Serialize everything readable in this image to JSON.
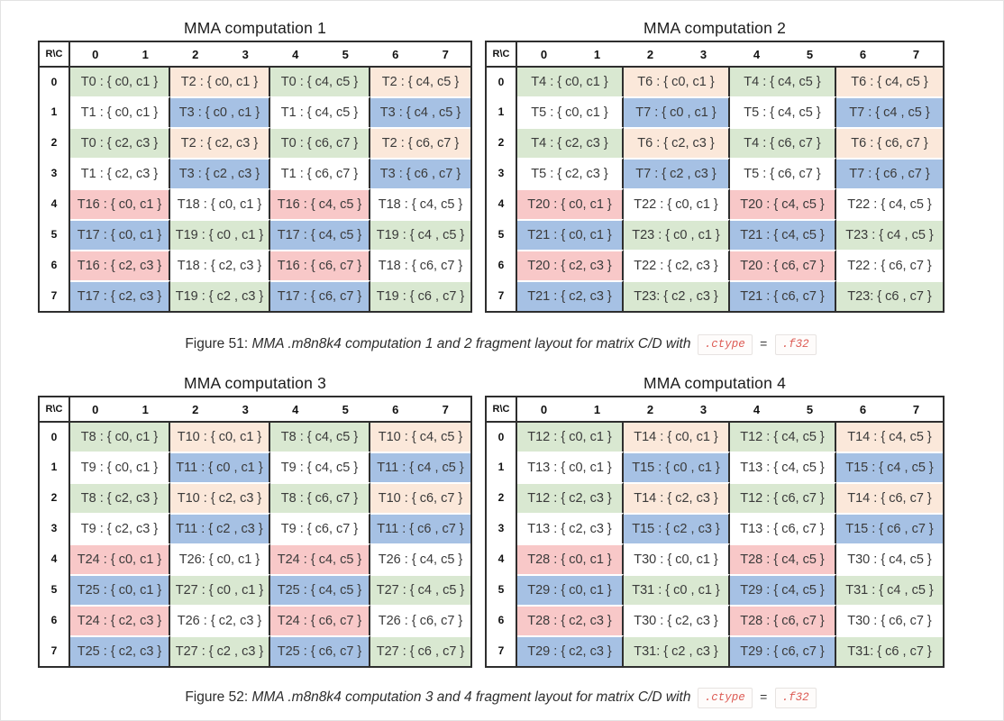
{
  "colors": {
    "green": "#d9e8d1",
    "peach": "#fbe8da",
    "blue": "#a6c1e4",
    "pink": "#f8c8c8",
    "border_dark": "#2e2e2e",
    "cell_text": "#3a3a3a",
    "chip_text": "#dd5c55",
    "chip_bg": "#fefcfb",
    "chip_border": "#e7e3e1"
  },
  "tables": [
    {
      "title": "MMA computation 1",
      "corner": "R\\C",
      "col_headers": [
        "0",
        "1",
        "2",
        "3",
        "4",
        "5",
        "6",
        "7"
      ],
      "row_headers": [
        "0",
        "1",
        "2",
        "3",
        "4",
        "5",
        "6",
        "7"
      ],
      "rows": [
        [
          {
            "t": "T0 : { c0, c1 }",
            "c": "green"
          },
          {
            "t": "T2 : { c0, c1 }",
            "c": "peach"
          },
          {
            "t": "T0 : { c4, c5 }",
            "c": "green"
          },
          {
            "t": "T2 : { c4, c5 }",
            "c": "peach"
          }
        ],
        [
          {
            "t": "T1 : { c0, c1 }",
            "c": "white"
          },
          {
            "t": "T3 : { c0 , c1 }",
            "c": "blue"
          },
          {
            "t": "T1 : { c4, c5 }",
            "c": "white"
          },
          {
            "t": "T3 : { c4 , c5 }",
            "c": "blue"
          }
        ],
        [
          {
            "t": "T0 : { c2, c3 }",
            "c": "green"
          },
          {
            "t": "T2 : { c2, c3 }",
            "c": "peach"
          },
          {
            "t": "T0 : { c6, c7 }",
            "c": "green"
          },
          {
            "t": "T2 : { c6, c7 }",
            "c": "peach"
          }
        ],
        [
          {
            "t": "T1 : { c2, c3 }",
            "c": "white"
          },
          {
            "t": "T3 : { c2 , c3 }",
            "c": "blue"
          },
          {
            "t": "T1 : { c6, c7 }",
            "c": "white"
          },
          {
            "t": "T3 : { c6 , c7 }",
            "c": "blue"
          }
        ],
        [
          {
            "t": "T16 : { c0, c1 }",
            "c": "pink"
          },
          {
            "t": "T18 : { c0, c1 }",
            "c": "white"
          },
          {
            "t": "T16 : { c4, c5 }",
            "c": "pink"
          },
          {
            "t": "T18 : { c4, c5 }",
            "c": "white"
          }
        ],
        [
          {
            "t": "T17 : { c0, c1 }",
            "c": "blue"
          },
          {
            "t": "T19 : { c0 , c1 }",
            "c": "green"
          },
          {
            "t": "T17 : { c4, c5 }",
            "c": "blue"
          },
          {
            "t": "T19 : { c4 , c5 }",
            "c": "green"
          }
        ],
        [
          {
            "t": "T16 : { c2, c3 }",
            "c": "pink"
          },
          {
            "t": "T18 : { c2, c3 }",
            "c": "white"
          },
          {
            "t": "T16 : { c6, c7 }",
            "c": "pink"
          },
          {
            "t": "T18 : { c6, c7 }",
            "c": "white"
          }
        ],
        [
          {
            "t": "T17 : { c2, c3 }",
            "c": "blue"
          },
          {
            "t": "T19 : { c2 , c3 }",
            "c": "green"
          },
          {
            "t": "T17 : { c6, c7 }",
            "c": "blue"
          },
          {
            "t": "T19 : { c6 , c7 }",
            "c": "green"
          }
        ]
      ]
    },
    {
      "title": "MMA computation 2",
      "corner": "R\\C",
      "col_headers": [
        "0",
        "1",
        "2",
        "3",
        "4",
        "5",
        "6",
        "7"
      ],
      "row_headers": [
        "0",
        "1",
        "2",
        "3",
        "4",
        "5",
        "6",
        "7"
      ],
      "rows": [
        [
          {
            "t": "T4 : { c0, c1 }",
            "c": "green"
          },
          {
            "t": "T6 : { c0, c1 }",
            "c": "peach"
          },
          {
            "t": "T4 : { c4, c5 }",
            "c": "green"
          },
          {
            "t": "T6 : { c4, c5 }",
            "c": "peach"
          }
        ],
        [
          {
            "t": "T5 : { c0, c1 }",
            "c": "white"
          },
          {
            "t": "T7 : { c0 , c1 }",
            "c": "blue"
          },
          {
            "t": "T5 : { c4, c5 }",
            "c": "white"
          },
          {
            "t": "T7 : { c4 , c5 }",
            "c": "blue"
          }
        ],
        [
          {
            "t": "T4 : { c2, c3 }",
            "c": "green"
          },
          {
            "t": "T6 : { c2, c3 }",
            "c": "peach"
          },
          {
            "t": "T4 : { c6, c7 }",
            "c": "green"
          },
          {
            "t": "T6 : { c6, c7 }",
            "c": "peach"
          }
        ],
        [
          {
            "t": "T5 : { c2, c3 }",
            "c": "white"
          },
          {
            "t": "T7 : { c2 , c3 }",
            "c": "blue"
          },
          {
            "t": "T5 : { c6, c7 }",
            "c": "white"
          },
          {
            "t": "T7 : { c6 , c7 }",
            "c": "blue"
          }
        ],
        [
          {
            "t": "T20 : { c0, c1 }",
            "c": "pink"
          },
          {
            "t": "T22 : { c0, c1 }",
            "c": "white"
          },
          {
            "t": "T20 : { c4, c5 }",
            "c": "pink"
          },
          {
            "t": "T22 : { c4, c5 }",
            "c": "white"
          }
        ],
        [
          {
            "t": "T21 : { c0, c1 }",
            "c": "blue"
          },
          {
            "t": "T23 : { c0 , c1 }",
            "c": "green"
          },
          {
            "t": "T21 : { c4, c5 }",
            "c": "blue"
          },
          {
            "t": "T23 : { c4 , c5 }",
            "c": "green"
          }
        ],
        [
          {
            "t": "T20 : { c2, c3 }",
            "c": "pink"
          },
          {
            "t": "T22 : { c2, c3 }",
            "c": "white"
          },
          {
            "t": "T20 : { c6, c7 }",
            "c": "pink"
          },
          {
            "t": "T22 : { c6, c7 }",
            "c": "white"
          }
        ],
        [
          {
            "t": "T21 : { c2, c3 }",
            "c": "blue"
          },
          {
            "t": "T23: { c2 , c3 }",
            "c": "green"
          },
          {
            "t": "T21 : { c6, c7 }",
            "c": "blue"
          },
          {
            "t": "T23: { c6 , c7 }",
            "c": "green"
          }
        ]
      ]
    },
    {
      "title": "MMA computation 3",
      "corner": "R\\C",
      "col_headers": [
        "0",
        "1",
        "2",
        "3",
        "4",
        "5",
        "6",
        "7"
      ],
      "row_headers": [
        "0",
        "1",
        "2",
        "3",
        "4",
        "5",
        "6",
        "7"
      ],
      "rows": [
        [
          {
            "t": "T8 : { c0, c1 }",
            "c": "green"
          },
          {
            "t": "T10 : { c0, c1 }",
            "c": "peach"
          },
          {
            "t": "T8 : { c4, c5 }",
            "c": "green"
          },
          {
            "t": "T10 : { c4, c5 }",
            "c": "peach"
          }
        ],
        [
          {
            "t": "T9 : { c0, c1 }",
            "c": "white"
          },
          {
            "t": "T11 : { c0 , c1 }",
            "c": "blue"
          },
          {
            "t": "T9 : { c4, c5 }",
            "c": "white"
          },
          {
            "t": "T11 : { c4 , c5 }",
            "c": "blue"
          }
        ],
        [
          {
            "t": "T8 : { c2, c3 }",
            "c": "green"
          },
          {
            "t": "T10 : { c2, c3 }",
            "c": "peach"
          },
          {
            "t": "T8 : { c6, c7 }",
            "c": "green"
          },
          {
            "t": "T10 : { c6, c7 }",
            "c": "peach"
          }
        ],
        [
          {
            "t": "T9 : { c2, c3 }",
            "c": "white"
          },
          {
            "t": "T11 : { c2 , c3 }",
            "c": "blue"
          },
          {
            "t": "T9 : { c6, c7 }",
            "c": "white"
          },
          {
            "t": "T11 : { c6 , c7 }",
            "c": "blue"
          }
        ],
        [
          {
            "t": "T24 : { c0, c1 }",
            "c": "pink"
          },
          {
            "t": "T26: { c0, c1 }",
            "c": "white"
          },
          {
            "t": "T24 : { c4, c5 }",
            "c": "pink"
          },
          {
            "t": "T26 : { c4, c5 }",
            "c": "white"
          }
        ],
        [
          {
            "t": "T25 : { c0, c1 }",
            "c": "blue"
          },
          {
            "t": "T27 : { c0 , c1 }",
            "c": "green"
          },
          {
            "t": "T25 : { c4, c5 }",
            "c": "blue"
          },
          {
            "t": "T27 : { c4 , c5 }",
            "c": "green"
          }
        ],
        [
          {
            "t": "T24 : { c2, c3 }",
            "c": "pink"
          },
          {
            "t": "T26 : { c2, c3 }",
            "c": "white"
          },
          {
            "t": "T24 : { c6, c7 }",
            "c": "pink"
          },
          {
            "t": "T26 : { c6, c7 }",
            "c": "white"
          }
        ],
        [
          {
            "t": "T25 : { c2, c3 }",
            "c": "blue"
          },
          {
            "t": "T27 : { c2 , c3 }",
            "c": "green"
          },
          {
            "t": "T25 : { c6, c7 }",
            "c": "blue"
          },
          {
            "t": "T27 : { c6 , c7 }",
            "c": "green"
          }
        ]
      ]
    },
    {
      "title": "MMA computation 4",
      "corner": "R\\C",
      "col_headers": [
        "0",
        "1",
        "2",
        "3",
        "4",
        "5",
        "6",
        "7"
      ],
      "row_headers": [
        "0",
        "1",
        "2",
        "3",
        "4",
        "5",
        "6",
        "7"
      ],
      "rows": [
        [
          {
            "t": "T12 : { c0, c1 }",
            "c": "green"
          },
          {
            "t": "T14 : { c0, c1 }",
            "c": "peach"
          },
          {
            "t": "T12 : { c4, c5 }",
            "c": "green"
          },
          {
            "t": "T14 : { c4, c5 }",
            "c": "peach"
          }
        ],
        [
          {
            "t": "T13 : { c0, c1 }",
            "c": "white"
          },
          {
            "t": "T15 : { c0 , c1 }",
            "c": "blue"
          },
          {
            "t": "T13 : { c4, c5 }",
            "c": "white"
          },
          {
            "t": "T15 : { c4 , c5 }",
            "c": "blue"
          }
        ],
        [
          {
            "t": "T12 : { c2, c3 }",
            "c": "green"
          },
          {
            "t": "T14 : { c2, c3 }",
            "c": "peach"
          },
          {
            "t": "T12 : { c6, c7 }",
            "c": "green"
          },
          {
            "t": "T14 : { c6, c7 }",
            "c": "peach"
          }
        ],
        [
          {
            "t": "T13 : { c2, c3 }",
            "c": "white"
          },
          {
            "t": "T15 : { c2 , c3 }",
            "c": "blue"
          },
          {
            "t": "T13 : { c6, c7 }",
            "c": "white"
          },
          {
            "t": "T15 : { c6 , c7 }",
            "c": "blue"
          }
        ],
        [
          {
            "t": "T28 : { c0, c1 }",
            "c": "pink"
          },
          {
            "t": "T30 : { c0, c1 }",
            "c": "white"
          },
          {
            "t": "T28 : { c4, c5 }",
            "c": "pink"
          },
          {
            "t": "T30 : { c4, c5 }",
            "c": "white"
          }
        ],
        [
          {
            "t": "T29 : { c0, c1 }",
            "c": "blue"
          },
          {
            "t": "T31 : { c0 , c1 }",
            "c": "green"
          },
          {
            "t": "T29 : { c4, c5 }",
            "c": "blue"
          },
          {
            "t": "T31 : { c4 , c5 }",
            "c": "green"
          }
        ],
        [
          {
            "t": "T28 : { c2, c3 }",
            "c": "pink"
          },
          {
            "t": "T30 : { c2, c3 }",
            "c": "white"
          },
          {
            "t": "T28 : { c6, c7 }",
            "c": "pink"
          },
          {
            "t": "T30 : { c6, c7 }",
            "c": "white"
          }
        ],
        [
          {
            "t": "T29 : { c2, c3 }",
            "c": "blue"
          },
          {
            "t": "T31: { c2 , c3 }",
            "c": "green"
          },
          {
            "t": "T29 : { c6, c7 }",
            "c": "blue"
          },
          {
            "t": "T31: { c6 , c7 }",
            "c": "green"
          }
        ]
      ]
    }
  ],
  "captions": [
    {
      "prefix": "Figure 51:",
      "body": "MMA .m8n8k4 computation 1 and 2 fragment layout for matrix C/D with",
      "chip1": ".ctype",
      "equals": "=",
      "chip2": ".f32"
    },
    {
      "prefix": "Figure 52:",
      "body": "MMA .m8n8k4 computation 3 and 4 fragment layout for matrix C/D with",
      "chip1": ".ctype",
      "equals": "=",
      "chip2": ".f32"
    }
  ]
}
